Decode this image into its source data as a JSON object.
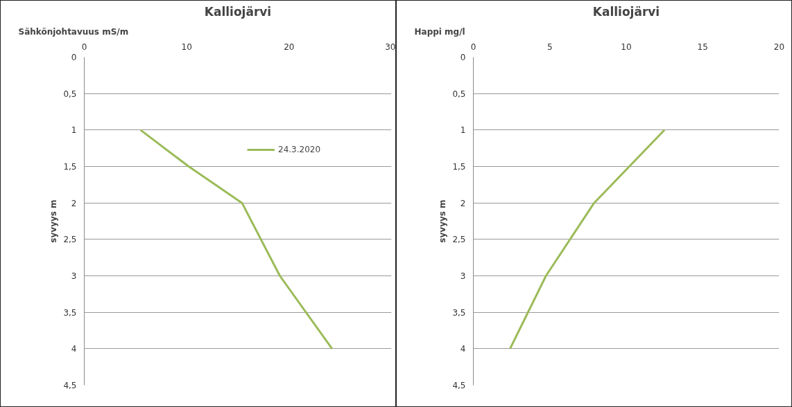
{
  "chart_data": [
    {
      "type": "line",
      "title": "Kalliojärvi",
      "xlabel": "Sähkönjohtavuus mS/m",
      "ylabel": "syvyys m",
      "series": [
        {
          "name": "24.3.2020",
          "color": "#9bbb59",
          "x": [
            5.5,
            10.2,
            15.4,
            19.1,
            24.2
          ],
          "values": [
            1,
            1.5,
            2,
            3,
            4
          ]
        }
      ],
      "xlim": [
        0,
        30
      ],
      "xticks": [
        0,
        10,
        20,
        30
      ],
      "ylim": [
        4.5,
        0
      ],
      "yticks": [
        0,
        {
          "value": 0.5,
          "label": "0,5"
        },
        1,
        {
          "value": 1.5,
          "label": "1,5"
        },
        2,
        {
          "value": 2.5,
          "label": "2,5"
        },
        3,
        {
          "value": 3.5,
          "label": "3,5"
        },
        4,
        {
          "value": 4.5,
          "label": "4,5"
        }
      ],
      "grid": "y",
      "legend": "top right",
      "line_style": "solid",
      "marker": "none"
    },
    {
      "type": "line",
      "title": "Kalliojärvi",
      "xlabel": "Happi mg/l",
      "ylabel": "syvyys m",
      "series": [
        {
          "color": "#9bbb59",
          "x": [
            12.5,
            10.2,
            7.9,
            4.75,
            2.4
          ],
          "values": [
            1,
            1.5,
            2,
            3,
            4
          ]
        }
      ],
      "xlim": [
        0,
        20
      ],
      "xticks": [
        0,
        5,
        10,
        15,
        20
      ],
      "ylim": [
        4.5,
        0
      ],
      "yticks": [
        0,
        {
          "value": 0.5,
          "label": "0,5"
        },
        1,
        {
          "value": 1.5,
          "label": "1,5"
        },
        2,
        {
          "value": 2.5,
          "label": "2,5"
        },
        3,
        {
          "value": 3.5,
          "label": "3,5"
        },
        4,
        {
          "value": 4.5,
          "label": "4,5"
        }
      ],
      "grid": "y",
      "line_style": "solid",
      "marker": "none"
    }
  ]
}
